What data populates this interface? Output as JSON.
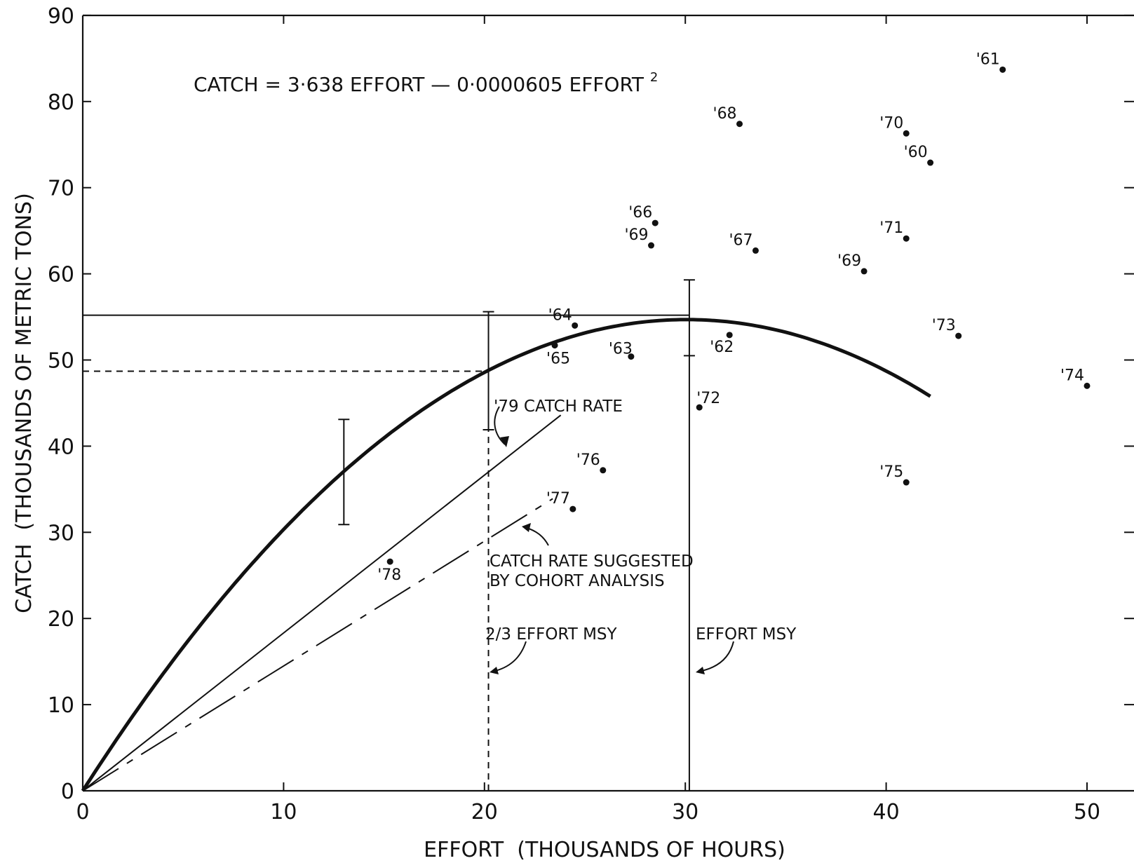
{
  "chart_data": {
    "type": "scatter",
    "xlabel": "EFFORT  (THOUSANDS OF HOURS)",
    "ylabel": "CATCH  (THOUSANDS OF METRIC TONS)",
    "xlim": [
      0,
      52
    ],
    "ylim": [
      0,
      90
    ],
    "x_ticks": [
      0,
      10,
      20,
      30,
      40,
      50
    ],
    "y_ticks": [
      0,
      10,
      20,
      30,
      40,
      50,
      60,
      70,
      80,
      90
    ],
    "grid": false,
    "equation": {
      "prefix": "CATCH = 3·638 EFFORT  —  0·0000605 EFFORT",
      "superscript": "2"
    },
    "curve": {
      "name": "CATCH = 3·638 EFFORT — 0·0000605 EFFORT²",
      "a": 3.638,
      "b": 6.05e-05,
      "x_range": [
        0,
        42.2
      ]
    },
    "points": [
      {
        "label": "'60",
        "x": 42.2,
        "y": 72.9
      },
      {
        "label": "'61",
        "x": 45.8,
        "y": 83.7
      },
      {
        "label": "'62",
        "x": 32.2,
        "y": 52.9
      },
      {
        "label": "'63",
        "x": 27.3,
        "y": 50.4
      },
      {
        "label": "'64",
        "x": 24.5,
        "y": 54.0
      },
      {
        "label": "'65",
        "x": 23.5,
        "y": 51.7
      },
      {
        "label": "'66",
        "x": 28.5,
        "y": 65.9
      },
      {
        "label": "'67",
        "x": 33.5,
        "y": 62.7
      },
      {
        "label": "'68",
        "x": 32.7,
        "y": 77.4
      },
      {
        "label": "'69",
        "x": 28.3,
        "y": 63.3
      },
      {
        "label": "'69",
        "x": 38.9,
        "y": 60.3
      },
      {
        "label": "'70",
        "x": 41.0,
        "y": 76.3
      },
      {
        "label": "'71",
        "x": 41.0,
        "y": 64.1
      },
      {
        "label": "'72",
        "x": 30.7,
        "y": 44.5
      },
      {
        "label": "'73",
        "x": 43.6,
        "y": 52.8
      },
      {
        "label": "'74",
        "x": 50.0,
        "y": 47.0
      },
      {
        "label": "'75",
        "x": 41.0,
        "y": 35.8
      },
      {
        "label": "'76",
        "x": 25.9,
        "y": 37.2
      },
      {
        "label": "'77",
        "x": 24.4,
        "y": 32.7
      },
      {
        "label": "'78",
        "x": 15.3,
        "y": 26.6
      }
    ],
    "error_bars": [
      {
        "x": 13.0,
        "low": 30.9,
        "high": 43.1
      },
      {
        "x": 20.2,
        "low": 41.9,
        "high": 55.6
      },
      {
        "x": 30.2,
        "low": 50.5,
        "high": 59.3
      }
    ],
    "reference_lines": [
      {
        "kind": "horizontal",
        "y": 55.2,
        "x_from": 0,
        "x_to": 30.2,
        "style": "solid"
      },
      {
        "kind": "horizontal",
        "y": 48.7,
        "x_from": 0,
        "x_to": 20.2,
        "style": "dashed"
      },
      {
        "kind": "vertical",
        "x": 20.2,
        "y_from": 0,
        "y_to": 41.9,
        "style": "dashed"
      },
      {
        "kind": "vertical",
        "x": 30.2,
        "y_from": 0,
        "y_to": 50.5,
        "style": "solid"
      }
    ],
    "rate_lines": [
      {
        "name": "'79 CATCH RATE",
        "x0": 0,
        "y0": 0,
        "x1": 23.8,
        "y1": 43.6,
        "style": "solid"
      },
      {
        "name": "CATCH RATE SUGGESTED BY COHORT ANALYSIS",
        "x0": 0,
        "y0": 0,
        "x1": 23.4,
        "y1": 33.9,
        "style": "dashdot"
      }
    ],
    "annotations": {
      "catch_rate_79": "'79 CATCH RATE",
      "cohort_line1": "CATCH RATE SUGGESTED",
      "cohort_line2": "BY COHORT ANALYSIS",
      "effort_23": "2/3 EFFORT MSY",
      "effort_msy": "EFFORT MSY"
    }
  }
}
